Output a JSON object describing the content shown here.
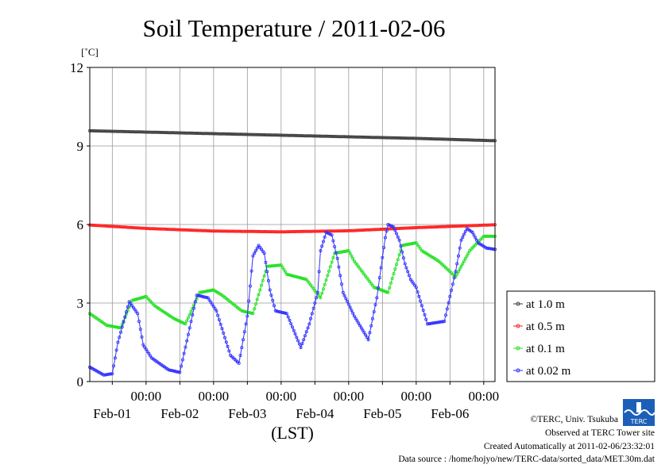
{
  "chart_data": {
    "type": "line",
    "title": "Soil Temperature / 2011-02-06",
    "unit_label": "[˚C]",
    "xlabel": "(LST)",
    "ylim": [
      0,
      12
    ],
    "yticks": [
      "0",
      "3",
      "6",
      "9",
      "12"
    ],
    "xticks": [
      {
        "time": "00:00",
        "date": "Feb-01"
      },
      {
        "time": "00:00",
        "date": "Feb-02"
      },
      {
        "time": "00:00",
        "date": "Feb-03"
      },
      {
        "time": "00:00",
        "date": "Feb-04"
      },
      {
        "time": "00:00",
        "date": "Feb-05"
      },
      {
        "time": "00:00",
        "date": "Feb-06"
      }
    ],
    "x_range_hours": [
      -20,
      124
    ],
    "grid": true,
    "legend_position": "right",
    "series": [
      {
        "name": "at 1.0 m",
        "color": "#404040",
        "x": [
          -20,
          0,
          24,
          48,
          72,
          96,
          124
        ],
        "y": [
          9.58,
          9.53,
          9.47,
          9.41,
          9.35,
          9.29,
          9.2
        ]
      },
      {
        "name": "at 0.5 m",
        "color": "#ff2020",
        "x": [
          -20,
          0,
          24,
          48,
          72,
          96,
          124
        ],
        "y": [
          5.98,
          5.85,
          5.75,
          5.72,
          5.76,
          5.88,
          5.99
        ]
      },
      {
        "name": "at 0.1 m",
        "color": "#20e020",
        "x": [
          -20,
          -14,
          -9,
          -5,
          0,
          3,
          10,
          14,
          19,
          24,
          27,
          34,
          38,
          43,
          48,
          50,
          57,
          62,
          67,
          72,
          74,
          81,
          86,
          91,
          96,
          98,
          104,
          110,
          115,
          120,
          124
        ],
        "y": [
          2.6,
          2.15,
          2.05,
          3.1,
          3.25,
          2.9,
          2.4,
          2.2,
          3.4,
          3.5,
          3.3,
          2.7,
          2.6,
          4.4,
          4.45,
          4.1,
          3.9,
          3.2,
          4.9,
          5.0,
          4.6,
          3.6,
          3.4,
          5.2,
          5.3,
          5.0,
          4.6,
          4.0,
          5.0,
          5.55,
          5.55
        ]
      },
      {
        "name": "at 0.02 m",
        "color": "#3030ff",
        "x": [
          -20,
          -15,
          -12,
          -10,
          -6,
          -3,
          -1,
          2,
          8,
          12,
          15,
          18,
          22,
          25,
          30,
          33,
          36,
          38,
          40,
          42,
          44,
          46,
          50,
          55,
          58,
          61,
          62,
          64,
          66,
          68,
          70,
          74,
          79,
          82,
          85,
          86,
          88,
          90,
          92,
          94,
          96,
          100,
          106,
          110,
          112,
          114,
          116,
          118,
          121,
          124
        ],
        "y": [
          0.55,
          0.25,
          0.3,
          1.5,
          3.05,
          2.6,
          1.4,
          0.9,
          0.45,
          0.35,
          1.8,
          3.3,
          3.2,
          2.7,
          1.0,
          0.7,
          2.5,
          4.8,
          5.2,
          4.9,
          3.5,
          2.7,
          2.6,
          1.3,
          2.2,
          3.4,
          5.0,
          5.7,
          5.6,
          4.7,
          3.4,
          2.5,
          1.6,
          3.2,
          5.5,
          6.0,
          5.9,
          5.4,
          4.5,
          3.9,
          3.6,
          2.2,
          2.3,
          4.2,
          5.4,
          5.85,
          5.7,
          5.3,
          5.1,
          5.05
        ]
      }
    ]
  },
  "footer": {
    "copyright": "©TERC, Univ. Tsukuba",
    "observed": "Observed at TERC Tower site",
    "created": "Created Automatically at 2011-02-06/23:32:01",
    "source": "Data source : /home/hojyo/new/TERC-data/sorted_data/MET.30m.dat",
    "logo_text": "TERC"
  }
}
